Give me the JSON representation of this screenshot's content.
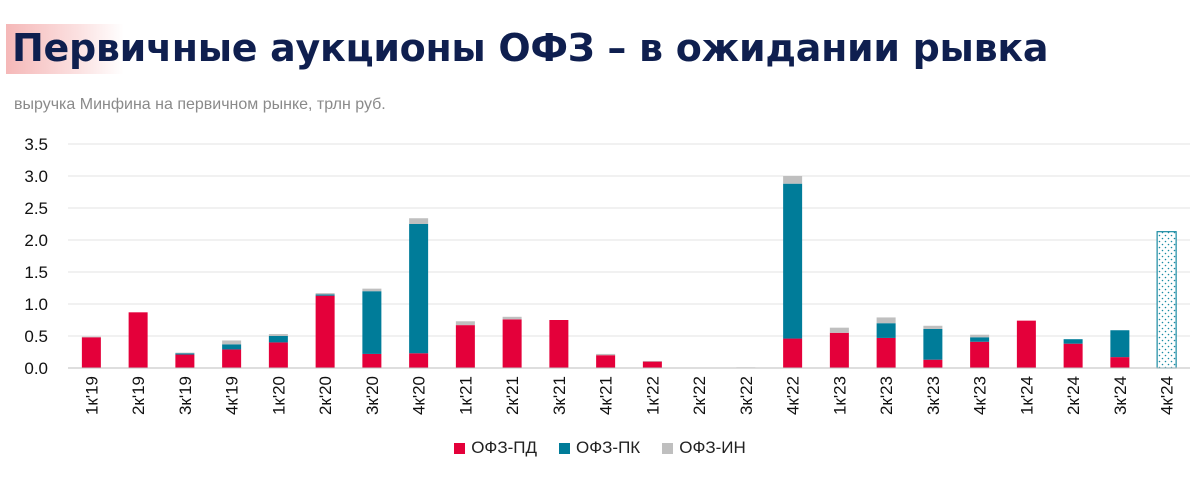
{
  "title": "Первичные аукционы ОФЗ – в ожидании рывка",
  "subtitle": "выручка Минфина на первичном рынке, трлн руб.",
  "colors": {
    "pd": "#e4003a",
    "pk": "#007c99",
    "in": "#bfbfbf",
    "forecast": "#1a8ba3",
    "title": "#0f1f4f"
  },
  "chart_data": {
    "type": "bar",
    "stacked": true,
    "title": "Первичные аукционы ОФЗ – в ожидании рывка",
    "ylabel": "выручка Минфина на первичном рынке, трлн руб.",
    "ylim": [
      0,
      3.5
    ],
    "yticks": [
      "0.0",
      "0.5",
      "1.0",
      "1.5",
      "2.0",
      "2.5",
      "3.0",
      "3.5"
    ],
    "categories": [
      "1к'19",
      "2к'19",
      "3к'19",
      "4к'19",
      "1к'20",
      "2к'20",
      "3к'20",
      "4к'20",
      "1к'21",
      "2к'21",
      "3к'21",
      "4к'21",
      "1к'22",
      "2к'22",
      "3к'22",
      "4к'22",
      "1к'23",
      "2к'23",
      "3к'23",
      "4к'23",
      "1к'24",
      "2к'24",
      "3к'24",
      "4к'24"
    ],
    "series": [
      {
        "name": "ОФЗ-ПД",
        "values": [
          0.48,
          0.87,
          0.21,
          0.29,
          0.4,
          1.13,
          0.22,
          0.23,
          0.67,
          0.76,
          0.75,
          0.2,
          0.1,
          0,
          0,
          0.46,
          0.55,
          0.47,
          0.13,
          0.41,
          0.74,
          0.38,
          0.17,
          0
        ]
      },
      {
        "name": "ОФЗ-ПК",
        "values": [
          0,
          0,
          0.02,
          0.08,
          0.1,
          0.02,
          0.98,
          2.02,
          0,
          0,
          0,
          0,
          0,
          0,
          0,
          2.42,
          0,
          0.23,
          0.48,
          0.07,
          0,
          0.07,
          0.42,
          0
        ]
      },
      {
        "name": "ОФЗ-ИН",
        "values": [
          0.01,
          0,
          0.01,
          0.06,
          0.03,
          0.02,
          0.04,
          0.09,
          0.06,
          0.04,
          0,
          0.02,
          0.01,
          0,
          0.01,
          0.12,
          0.08,
          0.09,
          0.05,
          0.04,
          0,
          0,
          0,
          0
        ]
      }
    ],
    "forecast": {
      "category": "4к'24",
      "value": 2.13,
      "style": "dotted-outline"
    },
    "legend": [
      "ОФЗ-ПД",
      "ОФЗ-ПК",
      "ОФЗ-ИН"
    ],
    "legend_position": "bottom-center",
    "grid": true
  }
}
